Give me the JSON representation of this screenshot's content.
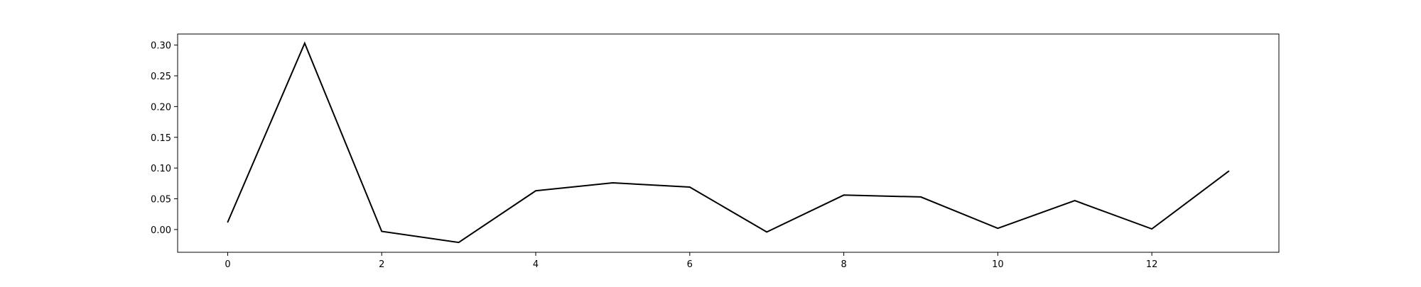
{
  "chart_data": {
    "type": "line",
    "title": "",
    "xlabel": "",
    "ylabel": "",
    "x": [
      0,
      1,
      2,
      3,
      4,
      5,
      6,
      7,
      8,
      9,
      10,
      11,
      12,
      13
    ],
    "series": [
      {
        "values": [
          0.012,
          0.303,
          -0.003,
          -0.021,
          0.063,
          0.076,
          0.069,
          -0.004,
          0.056,
          0.053,
          0.002,
          0.047,
          0.001,
          0.095
        ]
      }
    ],
    "xlim": [
      -0.65,
      13.65
    ],
    "ylim": [
      -0.037,
      0.318
    ],
    "xticks": [
      0,
      2,
      4,
      6,
      8,
      10,
      12
    ],
    "xtick_labels": [
      "0",
      "2",
      "4",
      "6",
      "8",
      "10",
      "12"
    ],
    "yticks": [
      0.0,
      0.05,
      0.1,
      0.15,
      0.2,
      0.25,
      0.3
    ],
    "ytick_labels": [
      "0.00",
      "0.05",
      "0.10",
      "0.15",
      "0.20",
      "0.25",
      "0.30"
    ],
    "grid": false,
    "legend": "none",
    "line_color": "#000000"
  }
}
